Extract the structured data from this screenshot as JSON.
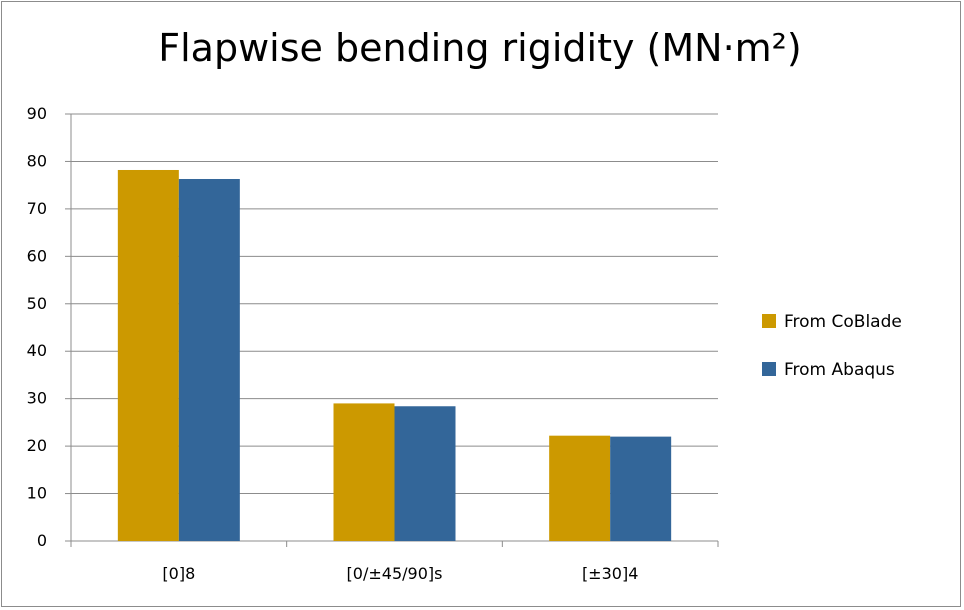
{
  "chart_data": {
    "type": "bar",
    "title": "Flapwise bending rigidity (MN·m²)",
    "categories": [
      "[0]8",
      "[0/±45/90]s",
      "[±30]4"
    ],
    "series": [
      {
        "name": "From CoBlade",
        "values": [
          78.2,
          29.0,
          22.2
        ],
        "color": "#cc9900"
      },
      {
        "name": "From Abaqus",
        "values": [
          76.3,
          28.4,
          22.0
        ],
        "color": "#336699"
      }
    ],
    "ylim": [
      0,
      90
    ],
    "yticks": [
      0,
      10,
      20,
      30,
      40,
      50,
      60,
      70,
      80,
      90
    ],
    "grid": true,
    "legend_position": "right"
  }
}
